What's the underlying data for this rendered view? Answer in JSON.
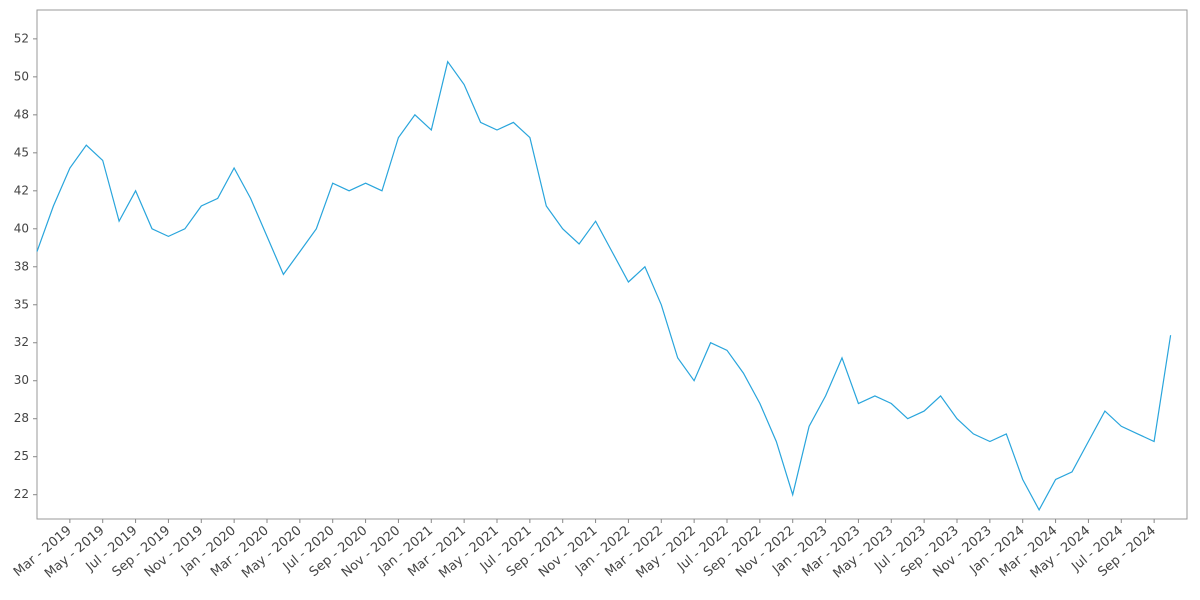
{
  "chart_data": {
    "type": "line",
    "color": "#29a5dc",
    "x": [
      "2019-01",
      "2019-02",
      "2019-03",
      "2019-04",
      "2019-05",
      "2019-06",
      "2019-07",
      "2019-08",
      "2019-09",
      "2019-10",
      "2019-11",
      "2019-12",
      "2020-01",
      "2020-02",
      "2020-03",
      "2020-04",
      "2020-05",
      "2020-06",
      "2020-07",
      "2020-08",
      "2020-09",
      "2020-10",
      "2020-11",
      "2020-12",
      "2021-01",
      "2021-02",
      "2021-03",
      "2021-04",
      "2021-05",
      "2021-06",
      "2021-07",
      "2021-08",
      "2021-09",
      "2021-10",
      "2021-11",
      "2021-12",
      "2022-01",
      "2022-02",
      "2022-03",
      "2022-04",
      "2022-05",
      "2022-06",
      "2022-07",
      "2022-08",
      "2022-09",
      "2022-10",
      "2022-11",
      "2022-12",
      "2023-01",
      "2023-02",
      "2023-03",
      "2023-04",
      "2023-05",
      "2023-06",
      "2023-07",
      "2023-08",
      "2023-09",
      "2023-10",
      "2023-11",
      "2023-12",
      "2024-01",
      "2024-02",
      "2024-03",
      "2024-04",
      "2024-05",
      "2024-06",
      "2024-07",
      "2024-08",
      "2024-09",
      "2024-10"
    ],
    "values": [
      38.5,
      41.5,
      44,
      45.5,
      44.5,
      40.5,
      42.5,
      40,
      39.5,
      40,
      41.5,
      42,
      44,
      42,
      39.5,
      37,
      38.5,
      40,
      43,
      42.5,
      43,
      42.5,
      46,
      47.5,
      46.5,
      51,
      49.5,
      47,
      46.5,
      47,
      46,
      41.5,
      40,
      39,
      40.5,
      38.5,
      36.5,
      37.5,
      35,
      31.5,
      30,
      32.5,
      32,
      30.5,
      28.5,
      26,
      22.5,
      27,
      29,
      31.5,
      28.5,
      29,
      28.5,
      27.5,
      28,
      29,
      27.5,
      26.5,
      26,
      26.5,
      23.5,
      21.5,
      23.5,
      24,
      26,
      28,
      27,
      26.5,
      26,
      33
    ],
    "xlim": [
      "2019-01",
      "2024-11"
    ],
    "xticks": [
      {
        "value": "2019-03",
        "label": "Mar - 2019"
      },
      {
        "value": "2019-05",
        "label": "May - 2019"
      },
      {
        "value": "2019-07",
        "label": "Jul - 2019"
      },
      {
        "value": "2019-09",
        "label": "Sep - 2019"
      },
      {
        "value": "2019-11",
        "label": "Nov - 2019"
      },
      {
        "value": "2020-01",
        "label": "Jan - 2020"
      },
      {
        "value": "2020-03",
        "label": "Mar - 2020"
      },
      {
        "value": "2020-05",
        "label": "May - 2020"
      },
      {
        "value": "2020-07",
        "label": "Jul - 2020"
      },
      {
        "value": "2020-09",
        "label": "Sep - 2020"
      },
      {
        "value": "2020-11",
        "label": "Nov - 2020"
      },
      {
        "value": "2021-01",
        "label": "Jan - 2021"
      },
      {
        "value": "2021-03",
        "label": "Mar - 2021"
      },
      {
        "value": "2021-05",
        "label": "May - 2021"
      },
      {
        "value": "2021-07",
        "label": "Jul - 2021"
      },
      {
        "value": "2021-09",
        "label": "Sep - 2021"
      },
      {
        "value": "2021-11",
        "label": "Nov - 2021"
      },
      {
        "value": "2022-01",
        "label": "Jan - 2022"
      },
      {
        "value": "2022-03",
        "label": "Mar - 2022"
      },
      {
        "value": "2022-05",
        "label": "May - 2022"
      },
      {
        "value": "2022-07",
        "label": "Jul - 2022"
      },
      {
        "value": "2022-09",
        "label": "Sep - 2022"
      },
      {
        "value": "2022-11",
        "label": "Nov - 2022"
      },
      {
        "value": "2023-01",
        "label": "Jan - 2023"
      },
      {
        "value": "2023-03",
        "label": "Mar - 2023"
      },
      {
        "value": "2023-05",
        "label": "May - 2023"
      },
      {
        "value": "2023-07",
        "label": "Jul - 2023"
      },
      {
        "value": "2023-09",
        "label": "Sep - 2023"
      },
      {
        "value": "2023-11",
        "label": "Nov - 2023"
      },
      {
        "value": "2024-01",
        "label": "Jan - 2024"
      },
      {
        "value": "2024-03",
        "label": "Mar - 2024"
      },
      {
        "value": "2024-05",
        "label": "May - 2024"
      },
      {
        "value": "2024-07",
        "label": "Jul - 2024"
      },
      {
        "value": "2024-09",
        "label": "Sep - 2024"
      }
    ],
    "ylim": [
      20.9,
      54.4
    ],
    "yticks": [
      {
        "value": 22.5,
        "label": "22"
      },
      25,
      {
        "value": 27.5,
        "label": "28"
      },
      30,
      {
        "value": 32.5,
        "label": "32"
      },
      35,
      {
        "value": 37.5,
        "label": "38"
      },
      40,
      {
        "value": 42.5,
        "label": "42"
      },
      45,
      {
        "value": 47.5,
        "label": "48"
      },
      50,
      {
        "value": 52.5,
        "label": "52"
      }
    ],
    "grid": false
  }
}
